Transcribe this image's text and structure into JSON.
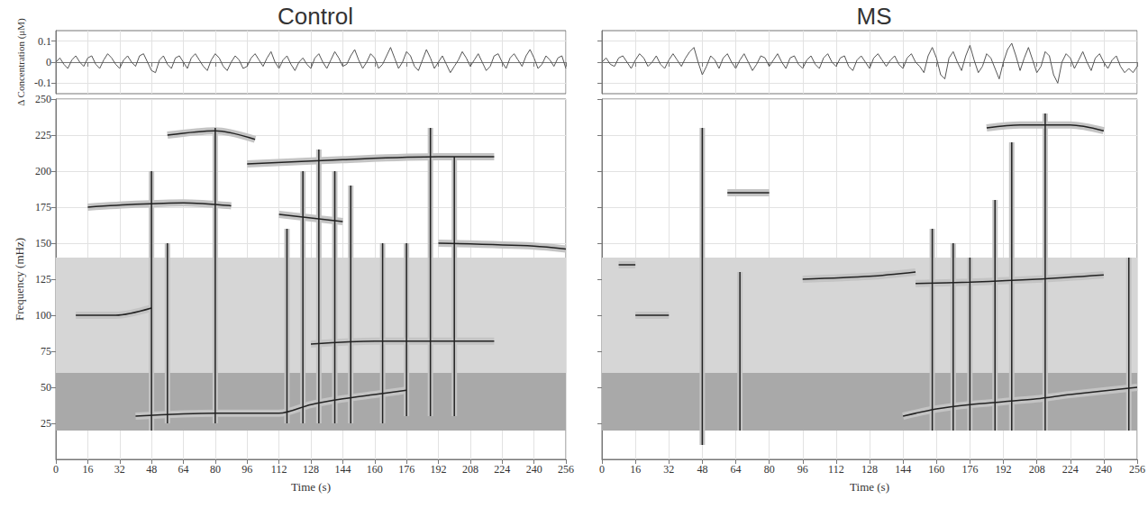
{
  "chart_data": [
    {
      "type": "line",
      "title": "Control",
      "ylabel": "Δ Concentration (μM)",
      "color": "#555555",
      "grid": true,
      "tick_labels": "y",
      "x": [
        0,
        2,
        4,
        6,
        8,
        10,
        12,
        14,
        16,
        18,
        20,
        22,
        24,
        26,
        28,
        30,
        32,
        34,
        36,
        38,
        40,
        42,
        44,
        46,
        48,
        50,
        52,
        54,
        56,
        58,
        60,
        62,
        64,
        66,
        68,
        70,
        72,
        74,
        76,
        78,
        80,
        82,
        84,
        86,
        88,
        90,
        92,
        94,
        96,
        98,
        100,
        102,
        104,
        106,
        108,
        110,
        112,
        114,
        116,
        118,
        120,
        122,
        124,
        126,
        128,
        130,
        132,
        134,
        136,
        138,
        140,
        142,
        144,
        146,
        148,
        150,
        152,
        154,
        156,
        158,
        160,
        162,
        164,
        166,
        168,
        170,
        172,
        174,
        176,
        178,
        180,
        182,
        184,
        186,
        188,
        190,
        192,
        194,
        196,
        198,
        200,
        202,
        204,
        206,
        208,
        210,
        212,
        214,
        216,
        218,
        220,
        222,
        224,
        226,
        228,
        230,
        232,
        234,
        236,
        238,
        240,
        242,
        244,
        246,
        248,
        250,
        252,
        254,
        256
      ],
      "values": [
        0.0,
        0.02,
        -0.01,
        -0.03,
        0.01,
        0.03,
        0.0,
        -0.02,
        0.02,
        0.03,
        -0.01,
        -0.03,
        0.01,
        0.04,
        0.02,
        -0.01,
        -0.03,
        0.01,
        0.03,
        0.0,
        -0.02,
        0.03,
        0.04,
        0.0,
        -0.04,
        -0.05,
        0.01,
        0.03,
        -0.01,
        -0.03,
        0.02,
        0.03,
        0.0,
        -0.03,
        0.02,
        0.04,
        0.01,
        -0.02,
        -0.04,
        0.01,
        0.04,
        0.02,
        -0.02,
        -0.04,
        0.0,
        0.03,
        0.01,
        -0.03,
        -0.02,
        0.02,
        0.04,
        0.01,
        -0.02,
        0.02,
        0.05,
        0.0,
        -0.03,
        0.01,
        0.03,
        -0.01,
        -0.04,
        0.0,
        0.02,
        -0.01,
        -0.03,
        0.02,
        0.04,
        0.0,
        -0.03,
        0.01,
        0.05,
        0.02,
        -0.02,
        -0.01,
        0.03,
        0.06,
        0.01,
        -0.03,
        0.0,
        0.04,
        0.02,
        -0.03,
        -0.01,
        0.03,
        0.07,
        0.02,
        -0.03,
        0.0,
        0.05,
        0.03,
        -0.02,
        -0.04,
        0.01,
        0.06,
        0.02,
        -0.03,
        0.0,
        0.03,
        -0.01,
        -0.05,
        -0.02,
        0.01,
        0.05,
        0.02,
        -0.02,
        0.01,
        0.04,
        0.0,
        -0.04,
        -0.02,
        0.03,
        0.04,
        0.0,
        -0.03,
        0.02,
        0.04,
        0.01,
        -0.02,
        0.03,
        0.06,
        0.02,
        -0.03,
        -0.01,
        0.03,
        0.01,
        -0.02,
        0.02,
        0.03,
        -0.03
      ],
      "xlim": [
        0,
        256
      ],
      "xticks": [
        0,
        16,
        32,
        48,
        64,
        80,
        96,
        112,
        128,
        144,
        160,
        176,
        192,
        208,
        224,
        240,
        256
      ],
      "ylim": [
        -0.15,
        0.15
      ],
      "yticks": [
        -0.1,
        0,
        0.1
      ]
    },
    {
      "type": "contour",
      "xlabel": "Time (s)",
      "ylabel": "Frequency (mHz)",
      "color": "#222222",
      "grid": true,
      "xlim": [
        0,
        256
      ],
      "xticks": [
        0,
        16,
        32,
        48,
        64,
        80,
        96,
        112,
        128,
        144,
        160,
        176,
        192,
        208,
        224,
        240,
        256
      ],
      "ylim": [
        0,
        250
      ],
      "yticks": [
        25,
        50,
        75,
        100,
        125,
        150,
        175,
        200,
        225,
        250
      ],
      "bands": [
        {
          "f": [
            20,
            60
          ],
          "color": "#a9a9a9"
        },
        {
          "f": [
            60,
            140
          ],
          "color": "#d6d6d6"
        }
      ],
      "ridges": [
        {
          "t": [
            40,
            80,
            112,
            128,
            144,
            160,
            176
          ],
          "f": [
            30,
            32,
            32,
            38,
            42,
            45,
            48
          ]
        },
        {
          "t": [
            128,
            160,
            192,
            220
          ],
          "f": [
            80,
            82,
            82,
            82
          ]
        },
        {
          "t": [
            10,
            30,
            48
          ],
          "f": [
            100,
            100,
            105
          ]
        },
        {
          "t": [
            16,
            40,
            64,
            88
          ],
          "f": [
            175,
            177,
            178,
            176
          ]
        },
        {
          "t": [
            56,
            80,
            100
          ],
          "f": [
            225,
            228,
            222
          ]
        },
        {
          "t": [
            96,
            144,
            192,
            220
          ],
          "f": [
            205,
            208,
            210,
            210
          ]
        },
        {
          "t": [
            112,
            144
          ],
          "f": [
            170,
            165
          ]
        },
        {
          "t": [
            192,
            240,
            256
          ],
          "f": [
            150,
            148,
            146
          ]
        }
      ],
      "bursts": [
        {
          "t": 48,
          "f": [
            20,
            200
          ]
        },
        {
          "t": 56,
          "f": [
            25,
            150
          ]
        },
        {
          "t": 80,
          "f": [
            25,
            230
          ]
        },
        {
          "t": 116,
          "f": [
            25,
            160
          ]
        },
        {
          "t": 124,
          "f": [
            25,
            200
          ]
        },
        {
          "t": 132,
          "f": [
            25,
            215
          ]
        },
        {
          "t": 140,
          "f": [
            25,
            200
          ]
        },
        {
          "t": 148,
          "f": [
            25,
            190
          ]
        },
        {
          "t": 164,
          "f": [
            25,
            150
          ]
        },
        {
          "t": 176,
          "f": [
            30,
            150
          ]
        },
        {
          "t": 188,
          "f": [
            30,
            230
          ]
        },
        {
          "t": 200,
          "f": [
            30,
            210
          ]
        }
      ]
    },
    {
      "type": "line",
      "title": "MS",
      "color": "#555555",
      "grid": true,
      "tick_labels": false,
      "x": [
        0,
        2,
        4,
        6,
        8,
        10,
        12,
        14,
        16,
        18,
        20,
        22,
        24,
        26,
        28,
        30,
        32,
        34,
        36,
        38,
        40,
        42,
        44,
        46,
        48,
        50,
        52,
        54,
        56,
        58,
        60,
        62,
        64,
        66,
        68,
        70,
        72,
        74,
        76,
        78,
        80,
        82,
        84,
        86,
        88,
        90,
        92,
        94,
        96,
        98,
        100,
        102,
        104,
        106,
        108,
        110,
        112,
        114,
        116,
        118,
        120,
        122,
        124,
        126,
        128,
        130,
        132,
        134,
        136,
        138,
        140,
        142,
        144,
        146,
        148,
        150,
        152,
        154,
        156,
        158,
        160,
        162,
        164,
        166,
        168,
        170,
        172,
        174,
        176,
        178,
        180,
        182,
        184,
        186,
        188,
        190,
        192,
        194,
        196,
        198,
        200,
        202,
        204,
        206,
        208,
        210,
        212,
        214,
        216,
        218,
        220,
        222,
        224,
        226,
        228,
        230,
        232,
        234,
        236,
        238,
        240,
        242,
        244,
        246,
        248,
        250,
        252,
        254,
        256
      ],
      "values": [
        0.0,
        0.02,
        -0.01,
        -0.02,
        0.02,
        0.03,
        0.0,
        -0.03,
        0.01,
        0.04,
        0.02,
        -0.02,
        0.0,
        0.03,
        -0.01,
        -0.03,
        0.01,
        0.04,
        0.01,
        -0.02,
        0.02,
        0.05,
        0.07,
        0.0,
        -0.06,
        -0.02,
        0.03,
        0.01,
        -0.03,
        0.02,
        0.04,
        0.0,
        -0.03,
        0.01,
        0.04,
        0.0,
        -0.04,
        -0.01,
        0.03,
        0.02,
        -0.02,
        0.01,
        0.04,
        0.0,
        -0.03,
        0.02,
        0.03,
        -0.01,
        -0.03,
        0.01,
        0.03,
        -0.01,
        -0.03,
        0.02,
        0.04,
        0.0,
        -0.02,
        0.02,
        0.03,
        -0.02,
        -0.04,
        0.01,
        0.03,
        0.0,
        -0.03,
        0.02,
        0.04,
        0.01,
        -0.02,
        0.01,
        0.03,
        -0.01,
        -0.03,
        0.02,
        0.04,
        0.0,
        -0.02,
        -0.05,
        0.03,
        0.07,
        0.02,
        -0.06,
        -0.08,
        0.02,
        0.05,
        0.0,
        -0.04,
        0.03,
        0.08,
        0.01,
        -0.05,
        -0.02,
        0.04,
        0.02,
        -0.03,
        -0.08,
        0.0,
        0.06,
        0.09,
        0.03,
        -0.04,
        0.02,
        0.07,
        0.01,
        -0.05,
        -0.02,
        0.05,
        0.03,
        -0.06,
        -0.1,
        0.0,
        0.04,
        0.02,
        -0.03,
        0.01,
        0.05,
        0.0,
        -0.04,
        0.02,
        0.04,
        0.0,
        -0.03,
        0.01,
        0.03,
        -0.02,
        -0.05,
        -0.03,
        -0.05,
        -0.02
      ],
      "xlim": [
        0,
        256
      ],
      "xticks": [
        0,
        16,
        32,
        48,
        64,
        80,
        96,
        112,
        128,
        144,
        160,
        176,
        192,
        208,
        224,
        240,
        256
      ],
      "ylim": [
        -0.15,
        0.15
      ],
      "yticks": [
        -0.1,
        0,
        0.1
      ]
    },
    {
      "type": "contour",
      "xlabel": "Time (s)",
      "color": "#222222",
      "grid": true,
      "tick_labels": "x",
      "xlim": [
        0,
        256
      ],
      "xticks": [
        0,
        16,
        32,
        48,
        64,
        80,
        96,
        112,
        128,
        144,
        160,
        176,
        192,
        208,
        224,
        240,
        256
      ],
      "ylim": [
        0,
        250
      ],
      "yticks": [
        25,
        50,
        75,
        100,
        125,
        150,
        175,
        200,
        225,
        250
      ],
      "bands": [
        {
          "f": [
            20,
            60
          ],
          "color": "#a9a9a9"
        },
        {
          "f": [
            60,
            140
          ],
          "color": "#d6d6d6"
        }
      ],
      "ridges": [
        {
          "t": [
            144,
            160,
            176,
            192,
            208,
            224,
            256
          ],
          "f": [
            30,
            35,
            38,
            40,
            42,
            45,
            50
          ]
        },
        {
          "t": [
            96,
            128,
            150
          ],
          "f": [
            125,
            127,
            130
          ]
        },
        {
          "t": [
            150,
            176,
            208,
            240
          ],
          "f": [
            122,
            123,
            125,
            128
          ]
        },
        {
          "t": [
            184,
            200,
            224,
            240
          ],
          "f": [
            230,
            232,
            232,
            228
          ]
        },
        {
          "t": [
            16,
            32
          ],
          "f": [
            100,
            100
          ]
        },
        {
          "t": [
            8,
            16
          ],
          "f": [
            135,
            135
          ]
        },
        {
          "t": [
            60,
            80
          ],
          "f": [
            185,
            185
          ]
        }
      ],
      "bursts": [
        {
          "t": 48,
          "f": [
            10,
            230
          ]
        },
        {
          "t": 66,
          "f": [
            20,
            130
          ]
        },
        {
          "t": 158,
          "f": [
            20,
            160
          ]
        },
        {
          "t": 168,
          "f": [
            20,
            150
          ]
        },
        {
          "t": 176,
          "f": [
            20,
            140
          ]
        },
        {
          "t": 188,
          "f": [
            20,
            180
          ]
        },
        {
          "t": 196,
          "f": [
            20,
            220
          ]
        },
        {
          "t": 212,
          "f": [
            20,
            240
          ]
        },
        {
          "t": 252,
          "f": [
            20,
            140
          ]
        }
      ]
    }
  ]
}
